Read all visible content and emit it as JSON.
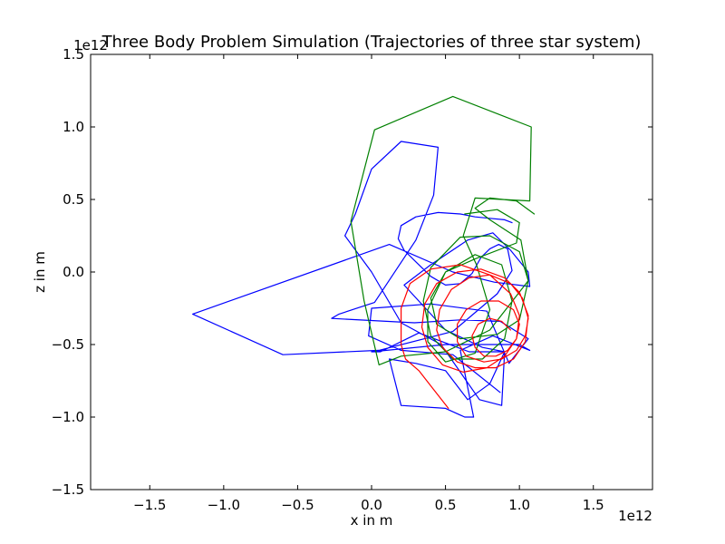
{
  "chart_data": {
    "type": "line",
    "title": "Three Body Problem Simulation (Trajectories of three star system)",
    "xlabel": "x in m",
    "ylabel": "z in m",
    "x_offset_text": "1e12",
    "y_offset_text": "1e12",
    "xlim": [
      -1.9,
      1.9
    ],
    "ylim": [
      -1.5,
      1.5
    ],
    "x_ticks": [
      -1.5,
      -1.0,
      -0.5,
      0.0,
      0.5,
      1.0,
      1.5
    ],
    "x_tick_labels": [
      "−1.5",
      "−1.0",
      "−0.5",
      "0.0",
      "0.5",
      "1.0",
      "1.5"
    ],
    "y_ticks": [
      -1.5,
      -1.0,
      -0.5,
      0.0,
      0.5,
      1.0,
      1.5
    ],
    "y_tick_labels": [
      "−1.5",
      "−1.0",
      "−0.5",
      "0.0",
      "0.5",
      "1.0",
      "1.5"
    ],
    "grid": false,
    "series": [
      {
        "color": "#0000ff",
        "points": [
          [
            0.87,
            -0.83
          ],
          [
            0.55,
            -0.57
          ],
          [
            0.2,
            -0.54
          ],
          [
            -0.02,
            -0.44
          ],
          [
            0.0,
            -0.25
          ],
          [
            0.4,
            -0.22
          ],
          [
            0.78,
            -0.27
          ],
          [
            0.93,
            -0.63
          ],
          [
            1.06,
            -0.46
          ],
          [
            0.87,
            -0.34
          ],
          [
            0.6,
            -0.33
          ],
          [
            0.29,
            -0.35
          ],
          [
            -0.27,
            -0.32
          ],
          [
            -0.22,
            -0.29
          ],
          [
            0.02,
            -0.21
          ],
          [
            0.3,
            0.22
          ],
          [
            0.42,
            0.53
          ],
          [
            0.45,
            0.86
          ],
          [
            0.2,
            0.9
          ],
          [
            0.0,
            0.71
          ],
          [
            -0.11,
            0.4
          ],
          [
            -0.18,
            0.25
          ],
          [
            0.0,
            0.0
          ],
          [
            0.2,
            -0.35
          ],
          [
            0.47,
            -0.5
          ],
          [
            0.73,
            -0.88
          ],
          [
            0.88,
            -0.92
          ],
          [
            0.9,
            -0.55
          ],
          [
            0.66,
            -0.55
          ],
          [
            0.32,
            -0.42
          ],
          [
            0.06,
            -0.55
          ],
          [
            0.0,
            -0.55
          ],
          [
            0.5,
            -0.5
          ],
          [
            1.0,
            -0.5
          ],
          [
            1.07,
            -0.54
          ],
          [
            0.82,
            -0.44
          ],
          [
            0.6,
            -0.54
          ],
          [
            0.69,
            -1.0
          ],
          [
            0.63,
            -1.0
          ],
          [
            0.5,
            -0.94
          ],
          [
            0.2,
            -0.92
          ],
          [
            0.12,
            -0.6
          ],
          [
            0.3,
            -0.63
          ],
          [
            0.5,
            -0.68
          ],
          [
            0.65,
            -0.88
          ],
          [
            0.8,
            -0.77
          ],
          [
            0.9,
            -0.55
          ],
          [
            0.75,
            -0.52
          ],
          [
            0.5,
            -0.4
          ],
          [
            0.22,
            -0.09
          ],
          [
            0.4,
            0.05
          ],
          [
            0.65,
            0.22
          ],
          [
            0.82,
            0.27
          ],
          [
            0.94,
            0.15
          ],
          [
            1.06,
            0.0
          ],
          [
            1.07,
            -0.1
          ],
          [
            0.83,
            -0.07
          ],
          [
            0.55,
            0.0
          ],
          [
            0.12,
            0.19
          ],
          [
            -1.21,
            -0.29
          ],
          [
            -0.6,
            -0.57
          ],
          [
            0.05,
            -0.54
          ],
          [
            0.55,
            -0.41
          ],
          [
            0.85,
            -0.15
          ],
          [
            0.95,
            0.01
          ],
          [
            0.92,
            0.16
          ],
          [
            0.86,
            0.19
          ],
          [
            0.8,
            0.16
          ],
          [
            0.74,
            0.1
          ],
          [
            0.68,
            -0.01
          ],
          [
            0.6,
            -0.08
          ],
          [
            0.5,
            -0.09
          ],
          [
            0.4,
            -0.03
          ],
          [
            0.3,
            0.07
          ],
          [
            0.22,
            0.15
          ],
          [
            0.18,
            0.23
          ],
          [
            0.2,
            0.32
          ],
          [
            0.3,
            0.38
          ],
          [
            0.45,
            0.41
          ],
          [
            0.6,
            0.4
          ],
          [
            0.7,
            0.38
          ],
          [
            0.8,
            0.37
          ],
          [
            0.9,
            0.36
          ],
          [
            0.95,
            0.34
          ]
        ]
      },
      {
        "color": "#008000",
        "points": [
          [
            0.63,
            0.4
          ],
          [
            0.85,
            0.43
          ],
          [
            1.0,
            0.34
          ],
          [
            0.98,
            0.2
          ],
          [
            0.7,
            0.09
          ],
          [
            0.5,
            0.0
          ],
          [
            0.4,
            -0.18
          ],
          [
            0.44,
            -0.36
          ],
          [
            0.6,
            -0.46
          ],
          [
            0.85,
            -0.43
          ],
          [
            1.0,
            -0.33
          ],
          [
            1.06,
            -0.06
          ],
          [
            1.0,
            0.14
          ],
          [
            0.8,
            0.25
          ],
          [
            0.6,
            0.24
          ],
          [
            0.4,
            0.03
          ],
          [
            0.35,
            -0.2
          ],
          [
            0.4,
            -0.44
          ],
          [
            0.55,
            -0.6
          ],
          [
            0.75,
            -0.6
          ],
          [
            0.9,
            -0.46
          ],
          [
            0.95,
            -0.2
          ],
          [
            0.88,
            0.05
          ],
          [
            0.7,
            0.12
          ],
          [
            0.5,
            0.0
          ],
          [
            0.38,
            -0.26
          ],
          [
            0.38,
            -0.48
          ],
          [
            0.5,
            -0.62
          ],
          [
            0.7,
            -0.56
          ],
          [
            0.8,
            -0.26
          ],
          [
            0.71,
            0.05
          ],
          [
            0.62,
            0.25
          ],
          [
            0.7,
            0.51
          ],
          [
            1.07,
            0.49
          ],
          [
            1.08,
            1.0
          ],
          [
            0.55,
            1.21
          ],
          [
            0.02,
            0.98
          ],
          [
            -0.14,
            0.35
          ],
          [
            -0.05,
            -0.2
          ],
          [
            0.05,
            -0.64
          ],
          [
            0.2,
            -0.58
          ],
          [
            0.5,
            -0.55
          ],
          [
            0.8,
            -0.4
          ],
          [
            1.06,
            -0.06
          ],
          [
            1.01,
            0.22
          ],
          [
            0.8,
            0.36
          ],
          [
            0.7,
            0.44
          ],
          [
            0.8,
            0.51
          ],
          [
            0.98,
            0.49
          ],
          [
            1.1,
            0.4
          ]
        ]
      },
      {
        "color": "#ff0000",
        "points": [
          [
            0.52,
            -0.94
          ],
          [
            0.42,
            -0.81
          ],
          [
            0.32,
            -0.68
          ],
          [
            0.23,
            -0.6
          ],
          [
            0.2,
            -0.5
          ],
          [
            0.2,
            -0.25
          ],
          [
            0.26,
            -0.08
          ],
          [
            0.4,
            0.02
          ],
          [
            0.6,
            0.05
          ],
          [
            0.8,
            -0.02
          ],
          [
            0.94,
            -0.15
          ],
          [
            1.0,
            -0.3
          ],
          [
            0.98,
            -0.46
          ],
          [
            0.9,
            -0.58
          ],
          [
            0.78,
            -0.66
          ],
          [
            0.62,
            -0.69
          ],
          [
            0.48,
            -0.64
          ],
          [
            0.38,
            -0.52
          ],
          [
            0.34,
            -0.38
          ],
          [
            0.36,
            -0.22
          ],
          [
            0.44,
            -0.08
          ],
          [
            0.58,
            0.0
          ],
          [
            0.74,
            0.02
          ],
          [
            0.9,
            -0.04
          ],
          [
            1.0,
            -0.14
          ],
          [
            1.06,
            -0.3
          ],
          [
            1.04,
            -0.48
          ],
          [
            0.96,
            -0.6
          ],
          [
            0.84,
            -0.66
          ],
          [
            0.7,
            -0.66
          ],
          [
            0.58,
            -0.62
          ],
          [
            0.48,
            -0.52
          ],
          [
            0.44,
            -0.4
          ],
          [
            0.46,
            -0.26
          ],
          [
            0.54,
            -0.12
          ],
          [
            0.66,
            -0.04
          ],
          [
            0.8,
            -0.02
          ],
          [
            0.94,
            -0.08
          ],
          [
            1.02,
            -0.18
          ],
          [
            1.06,
            -0.32
          ],
          [
            1.04,
            -0.44
          ],
          [
            0.98,
            -0.54
          ],
          [
            0.88,
            -0.6
          ],
          [
            0.76,
            -0.62
          ],
          [
            0.64,
            -0.58
          ],
          [
            0.58,
            -0.48
          ],
          [
            0.58,
            -0.36
          ],
          [
            0.64,
            -0.26
          ],
          [
            0.74,
            -0.2
          ],
          [
            0.86,
            -0.2
          ],
          [
            0.96,
            -0.26
          ],
          [
            1.0,
            -0.36
          ],
          [
            0.98,
            -0.46
          ],
          [
            0.92,
            -0.54
          ],
          [
            0.84,
            -0.58
          ],
          [
            0.76,
            -0.58
          ],
          [
            0.7,
            -0.52
          ],
          [
            0.68,
            -0.44
          ],
          [
            0.72,
            -0.36
          ],
          [
            0.8,
            -0.32
          ],
          [
            0.88,
            -0.34
          ],
          [
            0.94,
            -0.4
          ]
        ]
      }
    ]
  }
}
